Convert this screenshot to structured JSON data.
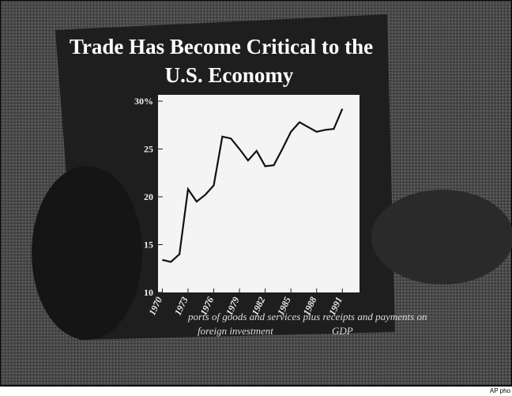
{
  "chart_data": {
    "type": "line",
    "title": "Trade Has Become Critical to the",
    "subtitle": "U.S. Economy",
    "caption": [
      "ports of goods and services plus receipts and payments on",
      "foreign investment",
      "GDP"
    ],
    "credit": "AP pho",
    "x": [
      1970,
      1971,
      1972,
      1973,
      1974,
      1975,
      1976,
      1977,
      1978,
      1979,
      1980,
      1981,
      1982,
      1983,
      1984,
      1985,
      1986,
      1987,
      1988,
      1989,
      1990,
      1991
    ],
    "values": [
      13.4,
      13.2,
      14,
      20.8,
      19.5,
      20.2,
      21.2,
      26.3,
      26.1,
      25,
      23.8,
      24.8,
      23.2,
      23.3,
      25,
      26.8,
      27.8,
      27.3,
      26.8,
      27,
      27.1,
      29.2
    ],
    "color": "#111111",
    "xlim": [
      1969.5,
      1993
    ],
    "xticks": [
      1970,
      1973,
      1976,
      1979,
      1982,
      1985,
      1988,
      1991
    ],
    "ylim": [
      10,
      30
    ],
    "yticks": [
      {
        "value": 30,
        "label": "30%"
      },
      25,
      20,
      15,
      10
    ]
  }
}
